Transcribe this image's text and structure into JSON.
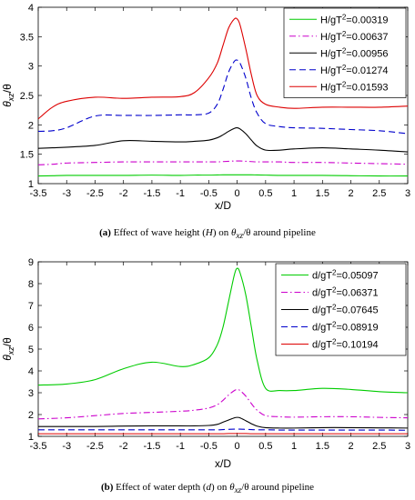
{
  "chart_data": [
    {
      "id": "a",
      "type": "line",
      "xlabel": "x/D",
      "ylabel_main": "θ",
      "ylabel_sub": "xz",
      "ylabel_den": "/θ",
      "xlim": [
        -3.5,
        3
      ],
      "ylim": [
        1,
        4
      ],
      "xticks": [
        "-3.5",
        "-3",
        "-2.5",
        "-2",
        "-1.5",
        "-1",
        "-0.5",
        "0",
        "0.5",
        "1",
        "1.5",
        "2",
        "2.5",
        "3"
      ],
      "xtick_values": [
        -3.5,
        -3,
        -2.5,
        -2,
        -1.5,
        -1,
        -0.5,
        0,
        0.5,
        1,
        1.5,
        2,
        2.5,
        3
      ],
      "yticks": [
        "1",
        "1.5",
        "2",
        "2.5",
        "3",
        "3.5",
        "4"
      ],
      "ytick_values": [
        1,
        1.5,
        2,
        2.5,
        3,
        3.5,
        4
      ],
      "legend_position": "top-right",
      "legend_prefix": "H/gT",
      "caption_tag": "(a)",
      "caption_text_1": " Effect of wave height (",
      "caption_var": "H",
      "caption_text_2": ") on ",
      "caption_math": "θ",
      "caption_math_sub": "xz",
      "caption_text_3": "/θ around pipeline",
      "x": [
        -3.5,
        -3.25,
        -3,
        -2.5,
        -2,
        -1.5,
        -1,
        -0.75,
        -0.5,
        -0.35,
        -0.25,
        -0.15,
        -0.05,
        0,
        0.05,
        0.15,
        0.25,
        0.35,
        0.5,
        0.75,
        1,
        1.5,
        2,
        2.5,
        3
      ],
      "series": [
        {
          "name": "=0.00319",
          "color": "#00cc00",
          "dash": "solid",
          "y": [
            1.13,
            1.135,
            1.14,
            1.14,
            1.14,
            1.145,
            1.14,
            1.145,
            1.145,
            1.148,
            1.15,
            1.15,
            1.15,
            1.15,
            1.15,
            1.15,
            1.15,
            1.148,
            1.145,
            1.14,
            1.14,
            1.14,
            1.135,
            1.13,
            1.13
          ]
        },
        {
          "name": "=0.00637",
          "color": "#cc00cc",
          "dash": "dashdot",
          "y": [
            1.32,
            1.33,
            1.35,
            1.36,
            1.37,
            1.37,
            1.37,
            1.37,
            1.37,
            1.37,
            1.375,
            1.38,
            1.385,
            1.385,
            1.385,
            1.38,
            1.375,
            1.37,
            1.37,
            1.37,
            1.36,
            1.36,
            1.35,
            1.34,
            1.33
          ]
        },
        {
          "name": "=0.00956",
          "color": "#000000",
          "dash": "solid",
          "y": [
            1.6,
            1.61,
            1.62,
            1.65,
            1.73,
            1.72,
            1.71,
            1.72,
            1.74,
            1.78,
            1.83,
            1.89,
            1.94,
            1.95,
            1.93,
            1.85,
            1.74,
            1.64,
            1.57,
            1.57,
            1.59,
            1.61,
            1.59,
            1.57,
            1.54
          ]
        },
        {
          "name": "=0.01274",
          "color": "#0000cc",
          "dash": "dashed",
          "y": [
            1.89,
            1.9,
            1.95,
            2.15,
            2.16,
            2.16,
            2.17,
            2.17,
            2.2,
            2.35,
            2.6,
            2.9,
            3.08,
            3.1,
            3.05,
            2.8,
            2.45,
            2.2,
            2.02,
            1.97,
            1.95,
            1.94,
            1.92,
            1.9,
            1.85
          ]
        },
        {
          "name": "=0.01593",
          "color": "#dd0000",
          "dash": "solid",
          "y": [
            2.1,
            2.3,
            2.4,
            2.47,
            2.45,
            2.47,
            2.48,
            2.55,
            2.8,
            3.05,
            3.35,
            3.65,
            3.8,
            3.8,
            3.7,
            3.3,
            2.85,
            2.5,
            2.35,
            2.3,
            2.28,
            2.3,
            2.3,
            2.3,
            2.32
          ]
        }
      ]
    },
    {
      "id": "b",
      "type": "line",
      "xlabel": "x/D",
      "ylabel_main": "θ",
      "ylabel_sub": "xz",
      "ylabel_den": "/θ",
      "xlim": [
        -3.5,
        3
      ],
      "ylim": [
        1,
        9
      ],
      "xticks": [
        "-3.5",
        "-3",
        "-2.5",
        "-2",
        "-1.5",
        "-1",
        "-0.5",
        "0",
        "0.5",
        "1",
        "1.5",
        "2",
        "2.5",
        "3"
      ],
      "xtick_values": [
        -3.5,
        -3,
        -2.5,
        -2,
        -1.5,
        -1,
        -0.5,
        0,
        0.5,
        1,
        1.5,
        2,
        2.5,
        3
      ],
      "yticks": [
        "1",
        "2",
        "3",
        "4",
        "5",
        "6",
        "7",
        "8",
        "9"
      ],
      "ytick_values": [
        1,
        2,
        3,
        4,
        5,
        6,
        7,
        8,
        9
      ],
      "legend_position": "top-right",
      "legend_prefix": "d/gT",
      "caption_tag": "(b)",
      "caption_text_1": " Effect of water depth (",
      "caption_var": "d",
      "caption_text_2": ") on ",
      "caption_math": "θ",
      "caption_math_sub": "xz",
      "caption_text_3": "/θ around pipeline",
      "x": [
        -3.5,
        -3,
        -2.5,
        -2,
        -1.5,
        -1,
        -0.75,
        -0.5,
        -0.35,
        -0.25,
        -0.15,
        -0.05,
        0,
        0.05,
        0.15,
        0.25,
        0.35,
        0.5,
        0.75,
        1,
        1.5,
        2,
        2.5,
        3
      ],
      "series": [
        {
          "name": "=0.05097",
          "color": "#00cc00",
          "dash": "solid",
          "y": [
            3.35,
            3.4,
            3.6,
            4.1,
            4.4,
            4.2,
            4.3,
            4.6,
            5.2,
            6.0,
            7.2,
            8.4,
            8.7,
            8.5,
            7.5,
            6.0,
            4.5,
            3.2,
            3.1,
            3.1,
            3.2,
            3.15,
            3.05,
            3.0
          ]
        },
        {
          "name": "=0.06371",
          "color": "#cc00cc",
          "dash": "dashdot",
          "y": [
            1.8,
            1.85,
            1.95,
            2.05,
            2.1,
            2.15,
            2.2,
            2.3,
            2.45,
            2.65,
            2.9,
            3.1,
            3.15,
            3.1,
            2.85,
            2.5,
            2.2,
            1.95,
            1.9,
            1.88,
            1.9,
            1.9,
            1.87,
            1.85
          ]
        },
        {
          "name": "=0.07645",
          "color": "#000000",
          "dash": "solid",
          "y": [
            1.45,
            1.45,
            1.45,
            1.47,
            1.48,
            1.48,
            1.48,
            1.5,
            1.55,
            1.65,
            1.75,
            1.85,
            1.87,
            1.85,
            1.72,
            1.58,
            1.47,
            1.4,
            1.38,
            1.38,
            1.4,
            1.4,
            1.39,
            1.38
          ]
        },
        {
          "name": "=0.08919",
          "color": "#0000cc",
          "dash": "dashed",
          "y": [
            1.3,
            1.3,
            1.3,
            1.3,
            1.3,
            1.3,
            1.3,
            1.3,
            1.3,
            1.31,
            1.32,
            1.33,
            1.33,
            1.33,
            1.32,
            1.31,
            1.3,
            1.3,
            1.29,
            1.29,
            1.29,
            1.29,
            1.29,
            1.28
          ]
        },
        {
          "name": "=0.10194",
          "color": "#dd0000",
          "dash": "solid",
          "y": [
            1.12,
            1.12,
            1.12,
            1.12,
            1.12,
            1.12,
            1.12,
            1.12,
            1.12,
            1.12,
            1.13,
            1.13,
            1.13,
            1.13,
            1.13,
            1.12,
            1.12,
            1.12,
            1.12,
            1.12,
            1.12,
            1.12,
            1.12,
            1.12
          ]
        }
      ]
    }
  ]
}
